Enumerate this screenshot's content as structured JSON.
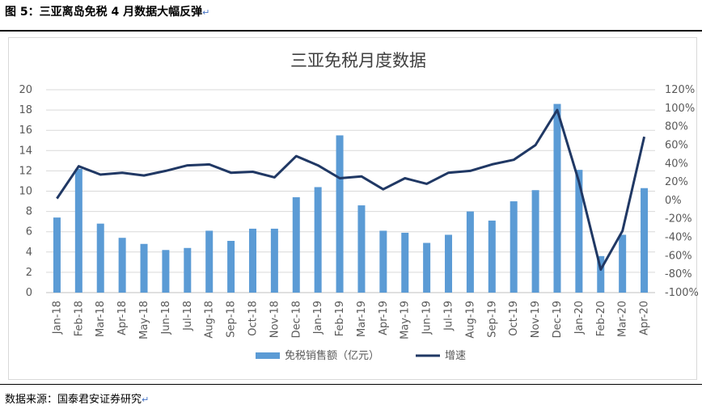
{
  "figure_label": "图 5：三亚离岛免税 4 月数据大幅反弹",
  "source_label": "数据来源：国泰君安证券研究",
  "return_mark": "↵",
  "colors": {
    "bar": "#5b9bd5",
    "line": "#203864",
    "grid": "#d9d9d9",
    "text": "#595959"
  },
  "chart_data": {
    "type": "bar",
    "title": "三亚免税月度数据",
    "categories": [
      "Jan-18",
      "Feb-18",
      "Mar-18",
      "Apr-18",
      "May-18",
      "Jun-18",
      "Jul-18",
      "Aug-18",
      "Sep-18",
      "Oct-18",
      "Nov-18",
      "Dec-18",
      "Jan-19",
      "Feb-19",
      "Mar-19",
      "Apr-19",
      "May-19",
      "Jun-19",
      "Jul-19",
      "Aug-19",
      "Sep-19",
      "Oct-19",
      "Nov-19",
      "Dec-19",
      "Jan-20",
      "Feb-20",
      "Mar-20",
      "Apr-20"
    ],
    "ylim": [
      0,
      20
    ],
    "y_ticks": [
      "0",
      "2",
      "4",
      "6",
      "8",
      "10",
      "12",
      "14",
      "16",
      "18",
      "20"
    ],
    "y2lim": [
      -100,
      120
    ],
    "y2_ticks": [
      "-100%",
      "-80%",
      "-60%",
      "-40%",
      "-20%",
      "0%",
      "20%",
      "40%",
      "60%",
      "80%",
      "100%",
      "120%"
    ],
    "grid": true,
    "legend_position": "bottom",
    "series": [
      {
        "name": "免税销售额（亿元）",
        "kind": "bar",
        "axis": "left",
        "values": [
          7.4,
          12.2,
          6.8,
          5.4,
          4.8,
          4.2,
          4.4,
          6.1,
          5.1,
          6.3,
          6.3,
          9.4,
          10.4,
          15.5,
          8.6,
          6.1,
          5.9,
          4.9,
          5.7,
          8.0,
          7.1,
          9.0,
          10.1,
          18.6,
          12.1,
          3.6,
          5.7,
          10.3
        ]
      },
      {
        "name": "增速",
        "kind": "line",
        "axis": "right",
        "values": [
          2,
          37,
          28,
          30,
          27,
          32,
          38,
          39,
          30,
          31,
          25,
          48,
          38,
          24,
          26,
          12,
          24,
          18,
          30,
          32,
          39,
          44,
          60,
          98,
          20,
          -75,
          -33,
          69
        ]
      }
    ]
  }
}
